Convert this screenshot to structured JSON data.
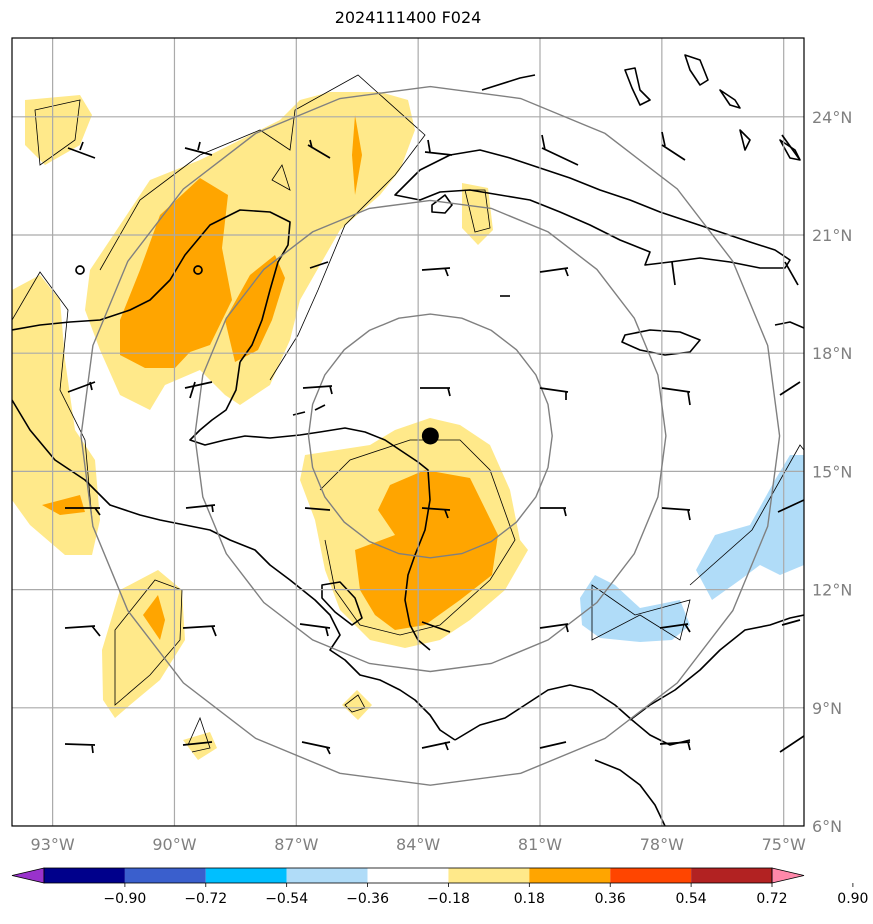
{
  "title": "2024111400 F024",
  "map": {
    "lon_range": [
      -94,
      -74.5
    ],
    "lat_range": [
      6,
      26
    ],
    "lon_ticks": [
      {
        "value": -93,
        "label": "93°W"
      },
      {
        "value": -90,
        "label": "90°W"
      },
      {
        "value": -87,
        "label": "87°W"
      },
      {
        "value": -84,
        "label": "84°W"
      },
      {
        "value": -81,
        "label": "81°W"
      },
      {
        "value": -78,
        "label": "78°W"
      },
      {
        "value": -75,
        "label": "75°W"
      }
    ],
    "lat_ticks": [
      {
        "value": 6,
        "label": "6°N"
      },
      {
        "value": 9,
        "label": "9°N"
      },
      {
        "value": 12,
        "label": "12°N"
      },
      {
        "value": 15,
        "label": "15°N"
      },
      {
        "value": 18,
        "label": "18°N"
      },
      {
        "value": 21,
        "label": "21°N"
      },
      {
        "value": 24,
        "label": "24°N"
      }
    ],
    "grid": true,
    "storm_center": {
      "lon": -83.7,
      "lat": 15.9
    },
    "range_rings_deg": [
      3,
      5.8,
      8.6
    ],
    "colors": {
      "coastline": "#000000",
      "grid": "#aaaaaa",
      "rings": "#808080",
      "pos1": "#ffe98a",
      "pos2": "#ffa500",
      "neg1": "#b0dcf8"
    }
  },
  "colorbar": {
    "extend": "both",
    "bins": [
      {
        "color": "#9932cc"
      },
      {
        "color": "#00008b"
      },
      {
        "color": "#3a5fcd"
      },
      {
        "color": "#00bfff"
      },
      {
        "color": "#b0dcf8"
      },
      {
        "color": "#ffffff"
      },
      {
        "color": "#ffe98a"
      },
      {
        "color": "#ffa500"
      },
      {
        "color": "#ff4500"
      },
      {
        "color": "#b22222"
      },
      {
        "color": "#ff88aa"
      }
    ],
    "labels": [
      "−0.90",
      "−0.72",
      "−0.54",
      "−0.36",
      "−0.18",
      "0.18",
      "0.36",
      "0.54",
      "0.72",
      "0.90"
    ]
  }
}
